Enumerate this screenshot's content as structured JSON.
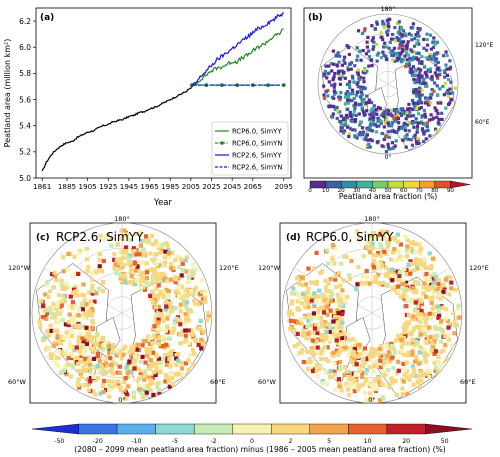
{
  "chart_data": [
    {
      "type": "line",
      "panel_label": "(a)",
      "xlabel": "Year",
      "ylabel": "Peatland area (million km²)",
      "xlim": [
        1855,
        2102
      ],
      "ylim": [
        5.0,
        6.3
      ],
      "x_ticks": [
        "1861",
        "1885",
        "1905",
        "1925",
        "1945",
        "1965",
        "1985",
        "2005",
        "2025",
        "2045",
        "2065",
        "2095"
      ],
      "y_ticks": [
        "5.0",
        "5.2",
        "5.4",
        "5.6",
        "5.8",
        "6.0",
        "6.2"
      ],
      "legend_position": "bottom-right",
      "series": [
        {
          "name": "",
          "color": "#000000",
          "style": "solid",
          "x": [
            1861,
            1865,
            1870,
            1875,
            1880,
            1885,
            1890,
            1895,
            1900,
            1905,
            1910,
            1915,
            1920,
            1925,
            1930,
            1935,
            1940,
            1945,
            1950,
            1955,
            1960,
            1965,
            1970,
            1975,
            1980,
            1985,
            1990,
            1995,
            2000,
            2005
          ],
          "y": [
            5.05,
            5.12,
            5.18,
            5.22,
            5.25,
            5.27,
            5.28,
            5.31,
            5.33,
            5.35,
            5.36,
            5.38,
            5.4,
            5.41,
            5.43,
            5.44,
            5.45,
            5.47,
            5.48,
            5.5,
            5.51,
            5.53,
            5.54,
            5.56,
            5.58,
            5.6,
            5.62,
            5.64,
            5.66,
            5.69
          ]
        },
        {
          "name": "RCP6.0, SimYY",
          "color": "#1a8c1a",
          "style": "solid",
          "x": [
            2005,
            2010,
            2015,
            2020,
            2025,
            2030,
            2035,
            2040,
            2045,
            2050,
            2055,
            2060,
            2065,
            2070,
            2075,
            2080,
            2085,
            2090,
            2095
          ],
          "y": [
            5.69,
            5.72,
            5.76,
            5.79,
            5.82,
            5.84,
            5.85,
            5.87,
            5.89,
            5.89,
            5.92,
            5.94,
            5.97,
            6.0,
            6.02,
            6.05,
            6.08,
            6.1,
            6.14
          ]
        },
        {
          "name": "RCP6.0, SimYN",
          "color": "#1a8c1a",
          "style": "dashdot-marker",
          "x": [
            2006,
            2020,
            2035,
            2050,
            2065,
            2080,
            2095
          ],
          "y": [
            5.71,
            5.71,
            5.71,
            5.71,
            5.71,
            5.71,
            5.71
          ]
        },
        {
          "name": "RCP2.6, SimYY",
          "color": "#1515e6",
          "style": "solid",
          "x": [
            2005,
            2010,
            2015,
            2020,
            2025,
            2030,
            2035,
            2040,
            2045,
            2050,
            2055,
            2060,
            2065,
            2070,
            2075,
            2080,
            2085,
            2090,
            2095
          ],
          "y": [
            5.69,
            5.73,
            5.78,
            5.82,
            5.86,
            5.9,
            5.93,
            5.96,
            5.99,
            6.02,
            6.05,
            6.08,
            6.11,
            6.14,
            6.16,
            6.19,
            6.21,
            6.24,
            6.26
          ]
        },
        {
          "name": "RCP2.6, SimYN",
          "color": "#1515e6",
          "style": "dashed",
          "x": [
            2006,
            2095
          ],
          "y": [
            5.71,
            5.71
          ]
        }
      ]
    },
    {
      "type": "heatmap",
      "panel_label": "(b)",
      "projection": "north-polar-stereographic",
      "lon_labels": [
        "180°",
        "120°E",
        "60°E",
        "0°"
      ],
      "colorbar_label": "Peatland area fraction (%)",
      "colorbar_ticks": [
        "0",
        "10",
        "20",
        "30",
        "40",
        "50",
        "60",
        "70",
        "80",
        "90"
      ],
      "colorbar_colors": [
        "#5a2c91",
        "#3f5ea8",
        "#2e8fa6",
        "#3fb39a",
        "#78cc6a",
        "#c4dd3c",
        "#efd82f",
        "#f2a22a",
        "#e0512d",
        "#b5162e"
      ]
    },
    {
      "type": "heatmap",
      "panel_label": "(c)",
      "title": "RCP2.6, SimYY",
      "projection": "north-polar-stereographic",
      "lon_labels": [
        "180°",
        "120°W",
        "120°E",
        "60°W",
        "60°E",
        "0°"
      ]
    },
    {
      "type": "heatmap",
      "panel_label": "(d)",
      "title": "RCP6.0, SimYY",
      "projection": "north-polar-stereographic",
      "lon_labels": [
        "180°",
        "120°W",
        "120°E",
        "60°W",
        "60°E",
        "0°"
      ]
    },
    {
      "type": "colorbar",
      "label": "(2080 – 2099 mean peatland area fraction) minus (1986 – 2005 mean peatland area fraction) (%)",
      "ticks": [
        "-50",
        "-20",
        "-10",
        "-5",
        "-2",
        "0",
        "2",
        "5",
        "10",
        "20",
        "50"
      ],
      "colors": [
        "#1b2fd6",
        "#3a74e3",
        "#5ab0ea",
        "#8fd8d2",
        "#c6ecb6",
        "#f6f2b0",
        "#f9d77d",
        "#f3a44f",
        "#e4632d",
        "#c2212c",
        "#8b0f1f"
      ]
    }
  ]
}
